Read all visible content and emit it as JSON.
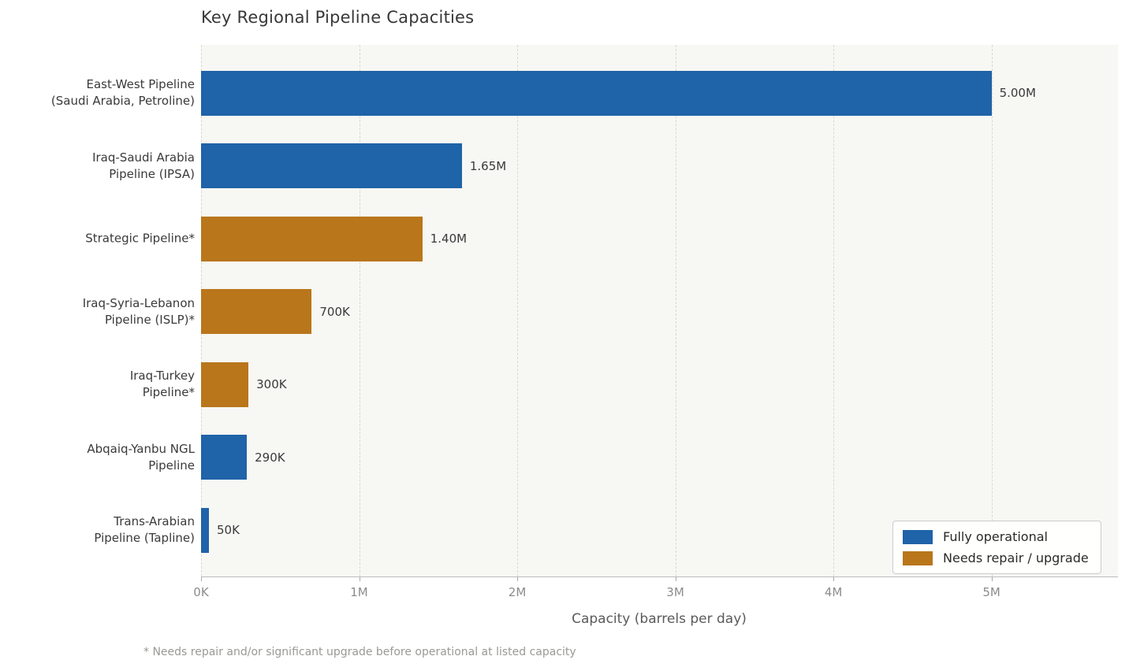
{
  "title": "Key Regional Pipeline Capacities",
  "xlabel": "Capacity (barrels per day)",
  "footnote": "* Needs repair and/or significant upgrade before operational at listed capacity",
  "colors": {
    "fully_operational": "#1f63a8",
    "needs_repair": "#b9761b",
    "plot_background": "#f7f7f4",
    "gridline": "#d8d8d2",
    "axis_line": "#bcbcbc",
    "title_text": "#383838",
    "tick_text": "#8c8c8c",
    "footnote_text": "#999995"
  },
  "legend": {
    "position": "lower right",
    "items": [
      {
        "label": "Fully operational",
        "color": "#1f63a8"
      },
      {
        "label": "Needs repair / upgrade",
        "color": "#b9761b"
      }
    ]
  },
  "chart_data": {
    "type": "bar",
    "orientation": "horizontal",
    "title": "Key Regional Pipeline Capacities",
    "xlabel": "Capacity (barrels per day)",
    "ylabel": "",
    "xlim": [
      0,
      5800000
    ],
    "grid": "vertical-dashed",
    "legend_position": "lower right",
    "x_ticks": [
      {
        "value": 0,
        "label": "0K"
      },
      {
        "value": 1000000,
        "label": "1M"
      },
      {
        "value": 2000000,
        "label": "2M"
      },
      {
        "value": 3000000,
        "label": "3M"
      },
      {
        "value": 4000000,
        "label": "4M"
      },
      {
        "value": 5000000,
        "label": "5M"
      }
    ],
    "bars": [
      {
        "category": "East-West Pipeline\n(Saudi Arabia, Petroline)",
        "value": 5000000,
        "value_label": "5.00M",
        "status": "Fully operational",
        "color": "#1f63a8"
      },
      {
        "category": "Iraq-Saudi Arabia\nPipeline (IPSA)",
        "value": 1650000,
        "value_label": "1.65M",
        "status": "Fully operational",
        "color": "#1f63a8"
      },
      {
        "category": "Strategic Pipeline*",
        "value": 1400000,
        "value_label": "1.40M",
        "status": "Needs repair / upgrade",
        "color": "#b9761b"
      },
      {
        "category": "Iraq-Syria-Lebanon\nPipeline (ISLP)*",
        "value": 700000,
        "value_label": "700K",
        "status": "Needs repair / upgrade",
        "color": "#b9761b"
      },
      {
        "category": "Iraq-Turkey\nPipeline*",
        "value": 300000,
        "value_label": "300K",
        "status": "Needs repair / upgrade",
        "color": "#b9761b"
      },
      {
        "category": "Abqaiq-Yanbu NGL\nPipeline",
        "value": 290000,
        "value_label": "290K",
        "status": "Fully operational",
        "color": "#1f63a8"
      },
      {
        "category": "Trans-Arabian\nPipeline (Tapline)",
        "value": 50000,
        "value_label": "50K",
        "status": "Fully operational",
        "color": "#1f63a8"
      }
    ]
  }
}
